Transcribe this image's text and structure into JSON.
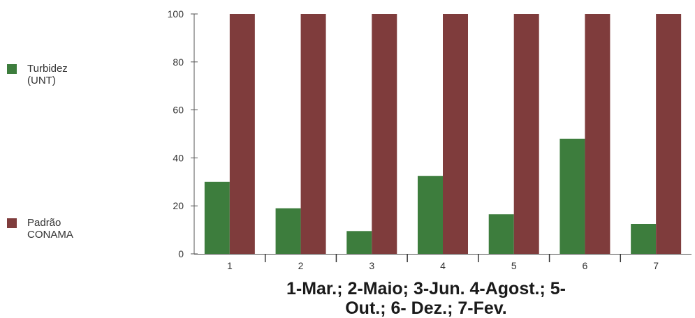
{
  "chart_data": {
    "type": "bar",
    "categories": [
      "1",
      "2",
      "3",
      "4",
      "5",
      "6",
      "7"
    ],
    "series": [
      {
        "name": "Turbidez (UNT)",
        "values": [
          30,
          19,
          9.5,
          32.5,
          16.5,
          48,
          12.5
        ],
        "color": "#3d7d3d"
      },
      {
        "name": "Padrão CONAMA",
        "values": [
          100,
          100,
          100,
          100,
          100,
          100,
          100
        ],
        "color": "#7f3c3c"
      }
    ],
    "xlabel": "1-Mar.; 2-Maio; 3-Jun. 4-Agost.; 5-Out.; 6- Dez.; 7-Fev.",
    "ylabel": "",
    "ylim": [
      0,
      100
    ],
    "yticks": [
      0,
      20,
      40,
      60,
      80,
      100
    ],
    "legend_position": "left",
    "grid": false
  },
  "legend": {
    "items": [
      {
        "label_line1": "Turbidez",
        "label_line2": "(UNT)",
        "color": "#3d7d3d"
      },
      {
        "label_line1": "Padrão",
        "label_line2": "CONAMA",
        "color": "#7f3c3c"
      }
    ]
  },
  "xlabel_lines": [
    "1-Mar.; 2-Maio; 3-Jun. 4-Agost.; 5-",
    "Out.; 6- Dez.; 7-Fev."
  ]
}
